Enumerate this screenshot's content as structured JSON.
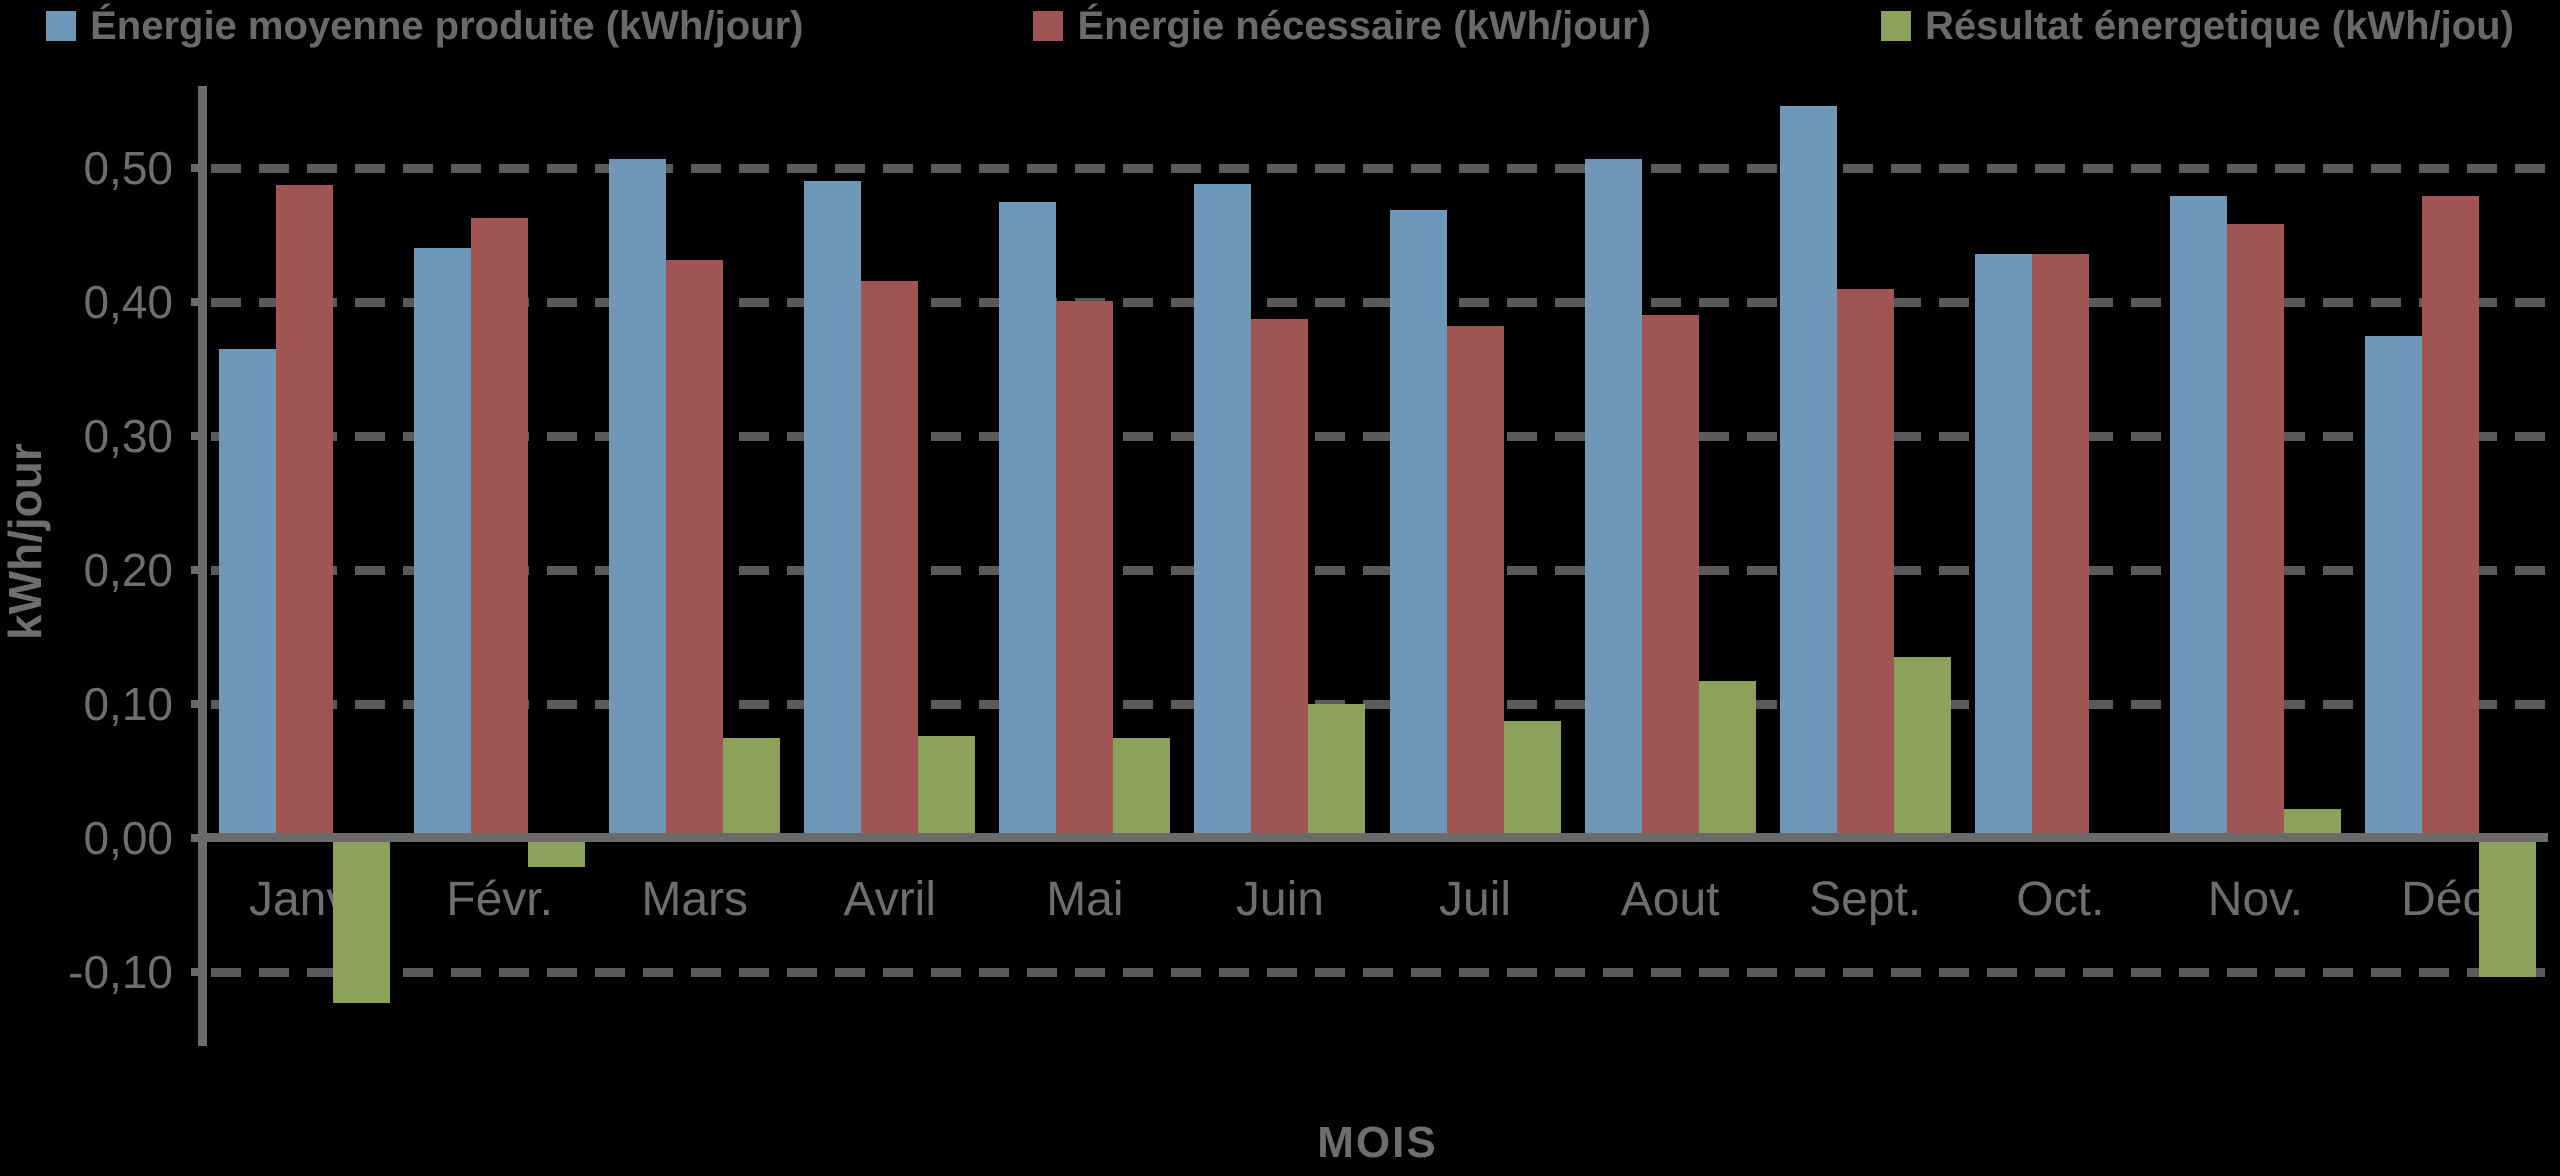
{
  "chart_data": {
    "type": "bar",
    "title": "",
    "xlabel": "MOIS",
    "ylabel": "kWh/jour",
    "categories": [
      "Janv.",
      "Févr.",
      "Mars",
      "Avril",
      "Mai",
      "Juin",
      "Juil",
      "Aout",
      "Sept.",
      "Oct.",
      "Nov.",
      "Déc."
    ],
    "series": [
      {
        "name": "Énergie moyenne produite (kWh/jour)",
        "color": "#6F97B8",
        "values": [
          0.365,
          0.44,
          0.507,
          0.49,
          0.475,
          0.488,
          0.469,
          0.507,
          0.546,
          0.436,
          0.479,
          0.375
        ]
      },
      {
        "name": "Énergie nécessaire (kWh/jour)",
        "color": "#A05454",
        "values": [
          0.487,
          0.463,
          0.431,
          0.416,
          0.401,
          0.387,
          0.382,
          0.39,
          0.41,
          0.436,
          0.458,
          0.479
        ]
      },
      {
        "name": "Résultat énergetique (kWh/jou)",
        "color": "#8CA25B",
        "values": [
          -0.123,
          -0.022,
          0.075,
          0.076,
          0.075,
          0.1,
          0.087,
          0.117,
          0.135,
          0.0,
          0.022,
          -0.104
        ]
      }
    ],
    "yticks": [
      {
        "v": 0.5,
        "label": "0,50"
      },
      {
        "v": 0.4,
        "label": "0,40"
      },
      {
        "v": 0.3,
        "label": "0,30"
      },
      {
        "v": 0.2,
        "label": "0,20"
      },
      {
        "v": 0.1,
        "label": "0,10"
      },
      {
        "v": 0.0,
        "label": "0,00"
      },
      {
        "v": -0.1,
        "label": "-0,10"
      }
    ],
    "ylim": [
      -0.155,
      0.56
    ],
    "grid": "dashed-horizontal",
    "legend_position": "top",
    "background": "#000000"
  },
  "styles": {
    "text_color": "#6E6E6E",
    "grid_color": "#5A5A5A",
    "axis_color": "#6B6B6B"
  }
}
